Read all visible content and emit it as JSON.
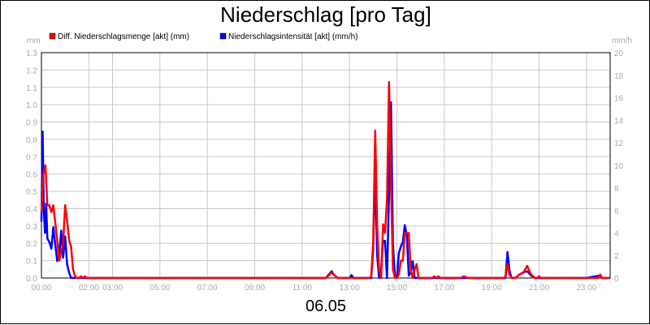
{
  "chart_data": {
    "type": "line",
    "title": "Niederschlag [pro Tag]",
    "date_label": "06.05",
    "y_left_unit": "mm",
    "y_right_unit": "mm/h",
    "ylim_left": [
      0,
      1.3
    ],
    "ylim_right": [
      0,
      20
    ],
    "y_left_ticks": [
      "0.0",
      "0.1",
      "0.2",
      "0.3",
      "0.4",
      "0.5",
      "0.6",
      "0.7",
      "0.8",
      "0.9",
      "1.0",
      "1.1",
      "1.2",
      "1.3"
    ],
    "y_right_ticks": [
      "0",
      "2",
      "4",
      "6",
      "8",
      "10",
      "12",
      "14",
      "16",
      "18",
      "20"
    ],
    "x_range": [
      "00:00",
      "24:00"
    ],
    "x_ticks": [
      {
        "t": "00:00",
        "label": "00:00"
      },
      {
        "t": "02:00",
        "label": "02:00"
      },
      {
        "t": "03:00",
        "label": "03:00"
      },
      {
        "t": "05:00",
        "label": "05:00"
      },
      {
        "t": "07:00",
        "label": "07:00"
      },
      {
        "t": "09:00",
        "label": "09:00"
      },
      {
        "t": "11:00",
        "label": "11:00"
      },
      {
        "t": "13:00",
        "label": "13:00"
      },
      {
        "t": "15:00",
        "label": "15:00"
      },
      {
        "t": "17:00",
        "label": "17:00"
      },
      {
        "t": "19:00",
        "label": "19:00"
      },
      {
        "t": "21:00",
        "label": "21:00"
      },
      {
        "t": "23:00",
        "label": "23:00"
      }
    ],
    "grid": true,
    "legend_position": "top",
    "series": [
      {
        "name": "Diff. Niederschlagsmenge [akt] (mm)",
        "color": "#ff0000",
        "axis": "left",
        "x": [
          "00:00",
          "00:05",
          "00:10",
          "00:15",
          "00:20",
          "00:25",
          "00:30",
          "00:35",
          "00:40",
          "00:45",
          "00:50",
          "00:55",
          "01:00",
          "01:05",
          "01:10",
          "01:15",
          "01:20",
          "01:25",
          "01:30",
          "01:35",
          "01:40",
          "01:45",
          "01:50",
          "01:55",
          "02:00",
          "02:10",
          "02:20",
          "02:30",
          "02:40",
          "03:00",
          "12:00",
          "12:15",
          "12:30",
          "13:00",
          "13:50",
          "13:55",
          "14:00",
          "14:05",
          "14:10",
          "14:15",
          "14:20",
          "14:25",
          "14:30",
          "14:35",
          "14:40",
          "14:45",
          "14:50",
          "14:55",
          "15:00",
          "15:05",
          "15:10",
          "15:15",
          "15:20",
          "15:25",
          "15:30",
          "15:35",
          "15:40",
          "15:45",
          "15:50",
          "15:55",
          "16:00",
          "16:05",
          "16:10",
          "16:15",
          "16:20",
          "16:25",
          "16:30",
          "16:35",
          "16:40",
          "16:45",
          "16:50",
          "16:55",
          "17:00",
          "17:30",
          "17:40",
          "17:50",
          "18:00",
          "19:30",
          "19:35",
          "19:40",
          "19:45",
          "19:50",
          "19:55",
          "20:00",
          "20:10",
          "20:20",
          "20:30",
          "20:35",
          "20:40",
          "20:45",
          "20:50",
          "20:55",
          "21:00",
          "21:05",
          "21:10",
          "21:20",
          "21:30",
          "22:00",
          "22:30",
          "23:00",
          "23:30",
          "23:35",
          "23:40",
          "23:50",
          "24:00"
        ],
        "values": [
          0.38,
          0.6,
          0.65,
          0.42,
          0.42,
          0.38,
          0.42,
          0.32,
          0.22,
          0.1,
          0.15,
          0.2,
          0.42,
          0.33,
          0.22,
          0.18,
          0.05,
          0.01,
          0.0,
          0.0,
          0.01,
          0.0,
          0.01,
          0.0,
          0.0,
          0.0,
          0.0,
          0.0,
          0.0,
          0.0,
          0.0,
          0.03,
          0.0,
          0.0,
          0.0,
          0.01,
          0.2,
          0.85,
          0.3,
          0.05,
          0.0,
          0.31,
          0.26,
          0.45,
          1.13,
          0.55,
          0.05,
          0.0,
          0.0,
          0.02,
          0.1,
          0.1,
          0.26,
          0.26,
          0.26,
          0.05,
          0.0,
          0.05,
          0.08,
          0.0,
          0.0,
          0.0,
          0.0,
          0.0,
          0.0,
          0.0,
          0.0,
          0.01,
          0.0,
          0.01,
          0.0,
          0.0,
          0.0,
          0.0,
          0.0,
          0.01,
          0.0,
          0.0,
          0.01,
          0.08,
          0.02,
          0.0,
          0.0,
          0.0,
          0.02,
          0.03,
          0.07,
          0.04,
          0.02,
          0.01,
          0.0,
          0.0,
          0.01,
          0.0,
          0.0,
          0.0,
          0.0,
          0.0,
          0.0,
          0.0,
          0.0,
          0.02,
          0.0,
          0.0,
          0.0
        ]
      },
      {
        "name": "Niederschlagsintensität [akt] (mm/h)",
        "color": "#0000ff",
        "axis": "right",
        "x": [
          "00:00",
          "00:03",
          "00:06",
          "00:09",
          "00:12",
          "00:15",
          "00:20",
          "00:25",
          "00:30",
          "00:35",
          "00:40",
          "00:45",
          "00:50",
          "00:55",
          "01:00",
          "01:05",
          "01:10",
          "01:15",
          "01:20",
          "01:25",
          "01:30",
          "01:35",
          "01:40",
          "01:45",
          "01:50",
          "01:55",
          "02:00",
          "02:10",
          "02:20",
          "03:00",
          "12:00",
          "12:10",
          "12:15",
          "12:20",
          "12:30",
          "13:00",
          "13:05",
          "13:10",
          "13:50",
          "13:55",
          "14:00",
          "14:05",
          "14:10",
          "14:15",
          "14:20",
          "14:25",
          "14:30",
          "14:35",
          "14:40",
          "14:45",
          "14:50",
          "14:55",
          "15:00",
          "15:05",
          "15:10",
          "15:15",
          "15:20",
          "15:25",
          "15:30",
          "15:35",
          "15:40",
          "15:45",
          "15:50",
          "15:55",
          "16:00",
          "16:05",
          "16:10",
          "16:15",
          "16:20",
          "16:25",
          "16:30",
          "17:00",
          "17:40",
          "17:45",
          "18:00",
          "19:30",
          "19:35",
          "19:40",
          "19:45",
          "19:50",
          "19:55",
          "20:00",
          "20:10",
          "20:20",
          "20:30",
          "20:40",
          "20:45",
          "20:50",
          "20:55",
          "21:00",
          "21:10",
          "21:20",
          "22:00",
          "23:00",
          "23:30",
          "23:40",
          "23:50",
          "24:00"
        ],
        "values": [
          5,
          13,
          6,
          4,
          6.6,
          3.5,
          3.2,
          2.6,
          4.5,
          3,
          1.5,
          2,
          4.2,
          1.8,
          3.7,
          1.2,
          0.5,
          0,
          0,
          0,
          0,
          0,
          0,
          0,
          0,
          0,
          0,
          0,
          0,
          0,
          0,
          0.4,
          0.6,
          0.3,
          0,
          0,
          0.25,
          0,
          0,
          0,
          2.5,
          9.5,
          2,
          0,
          0.7,
          3.3,
          3.3,
          0,
          7.5,
          15.6,
          3,
          0.2,
          0,
          2.2,
          2.8,
          3.2,
          4.7,
          3.8,
          0.2,
          0.5,
          1.5,
          0,
          0,
          0,
          0,
          0,
          0,
          0,
          0,
          0,
          0,
          0,
          0,
          0,
          0,
          0,
          0,
          2.3,
          0.7,
          0,
          0,
          0,
          0.3,
          0.5,
          0.6,
          0.2,
          0.1,
          0,
          0,
          0,
          0,
          0,
          0,
          0,
          0.2,
          0,
          0,
          0
        ]
      }
    ]
  }
}
